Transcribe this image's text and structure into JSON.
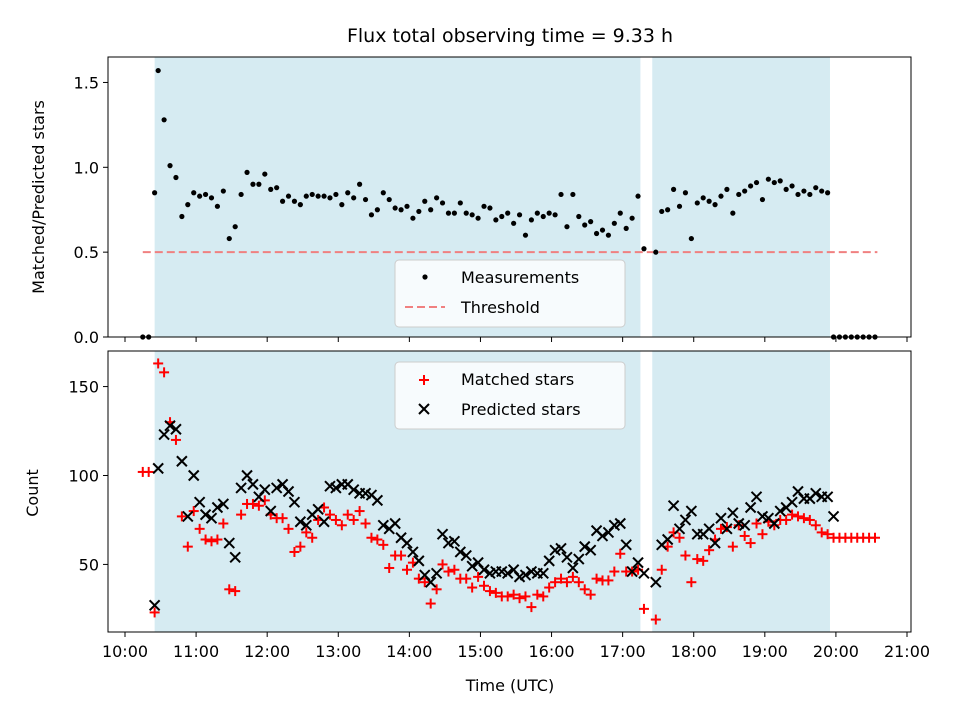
{
  "chart_data": [
    {
      "type": "scatter",
      "title": "Flux total observing time = 9.33 h",
      "xlabel": "",
      "ylabel": "Matched/Predicted stars",
      "xlim": [
        "10:00",
        "21:00"
      ],
      "ylim": [
        0,
        1.65
      ],
      "yticks": [
        "0.0",
        "0.5",
        "1.0",
        "1.5"
      ],
      "grid": false,
      "legend": "lower-center",
      "shaded_intervals": [
        [
          "10:25",
          "17:15"
        ],
        [
          "17:25",
          "19:55"
        ]
      ],
      "threshold": {
        "name": "Threshold",
        "y": 0.5,
        "x": [
          "10:15",
          "20:35"
        ],
        "color": "#f08080"
      },
      "series": [
        {
          "name": "Measurements",
          "color": "#000000",
          "marker": "dot",
          "x": [
            "10:15",
            "10:20",
            "10:25",
            "10:28",
            "10:33",
            "10:38",
            "10:43",
            "10:48",
            "10:53",
            "10:58",
            "11:03",
            "11:08",
            "11:13",
            "11:18",
            "11:23",
            "11:28",
            "11:33",
            "11:38",
            "11:43",
            "11:48",
            "11:53",
            "11:58",
            "12:03",
            "12:08",
            "12:13",
            "12:18",
            "12:23",
            "12:28",
            "12:33",
            "12:38",
            "12:43",
            "12:48",
            "12:53",
            "12:58",
            "13:03",
            "13:08",
            "13:13",
            "13:18",
            "13:23",
            "13:28",
            "13:33",
            "13:38",
            "13:43",
            "13:48",
            "13:53",
            "13:58",
            "14:03",
            "14:08",
            "14:13",
            "14:18",
            "14:23",
            "14:28",
            "14:33",
            "14:38",
            "14:43",
            "14:48",
            "14:53",
            "14:58",
            "15:03",
            "15:08",
            "15:13",
            "15:18",
            "15:23",
            "15:28",
            "15:33",
            "15:38",
            "15:43",
            "15:48",
            "15:53",
            "15:58",
            "16:03",
            "16:08",
            "16:13",
            "16:18",
            "16:23",
            "16:28",
            "16:33",
            "16:38",
            "16:43",
            "16:48",
            "16:53",
            "16:58",
            "17:03",
            "17:08",
            "17:13",
            "17:18",
            "17:28",
            "17:33",
            "17:38",
            "17:43",
            "17:48",
            "17:53",
            "17:58",
            "18:03",
            "18:08",
            "18:13",
            "18:18",
            "18:23",
            "18:28",
            "18:33",
            "18:38",
            "18:43",
            "18:48",
            "18:53",
            "18:58",
            "19:03",
            "19:08",
            "19:13",
            "19:18",
            "19:23",
            "19:28",
            "19:33",
            "19:38",
            "19:43",
            "19:48",
            "19:53",
            "19:58",
            "20:03",
            "20:08",
            "20:13",
            "20:18",
            "20:23",
            "20:28",
            "20:33"
          ],
          "values": [
            0,
            0,
            0.85,
            1.57,
            1.28,
            1.01,
            0.94,
            0.71,
            0.78,
            0.85,
            0.83,
            0.84,
            0.82,
            0.77,
            0.86,
            0.58,
            0.65,
            0.84,
            0.97,
            0.9,
            0.9,
            0.96,
            0.87,
            0.88,
            0.8,
            0.83,
            0.8,
            0.78,
            0.83,
            0.84,
            0.83,
            0.83,
            0.82,
            0.84,
            0.78,
            0.85,
            0.82,
            0.9,
            0.81,
            0.72,
            0.75,
            0.85,
            0.81,
            0.76,
            0.75,
            0.77,
            0.7,
            0.74,
            0.8,
            0.75,
            0.82,
            0.79,
            0.73,
            0.73,
            0.79,
            0.73,
            0.72,
            0.7,
            0.77,
            0.76,
            0.69,
            0.71,
            0.73,
            0.67,
            0.72,
            0.6,
            0.69,
            0.73,
            0.71,
            0.73,
            0.72,
            0.84,
            0.65,
            0.84,
            0.71,
            0.66,
            0.68,
            0.61,
            0.63,
            0.6,
            0.67,
            0.73,
            0.64,
            0.7,
            0.83,
            0.52,
            0.5,
            0.74,
            0.75,
            0.87,
            0.77,
            0.85,
            0.58,
            0.79,
            0.82,
            0.8,
            0.78,
            0.83,
            0.87,
            0.73,
            0.84,
            0.86,
            0.89,
            0.91,
            0.81,
            0.93,
            0.91,
            0.92,
            0.87,
            0.89,
            0.84,
            0.86,
            0.84,
            0.88,
            0.86,
            0.85,
            0,
            0,
            0,
            0,
            0,
            0,
            0,
            0
          ]
        }
      ]
    },
    {
      "type": "scatter",
      "title": "",
      "xlabel": "Time (UTC)",
      "ylabel": "Count",
      "xlim": [
        "10:00",
        "21:00"
      ],
      "ylim": [
        12,
        170
      ],
      "xticks": [
        "10:00",
        "11:00",
        "12:00",
        "13:00",
        "14:00",
        "15:00",
        "16:00",
        "17:00",
        "18:00",
        "19:00",
        "20:00",
        "21:00"
      ],
      "yticks": [
        "50",
        "100",
        "150"
      ],
      "grid": false,
      "legend": "upper-center",
      "shaded_intervals": [
        [
          "10:25",
          "17:15"
        ],
        [
          "17:25",
          "19:55"
        ]
      ],
      "series": [
        {
          "name": "Matched stars",
          "color": "#ff0000",
          "marker": "plus",
          "x": [
            "10:15",
            "10:20",
            "10:25",
            "10:28",
            "10:33",
            "10:38",
            "10:43",
            "10:48",
            "10:53",
            "10:58",
            "11:03",
            "11:08",
            "11:13",
            "11:18",
            "11:23",
            "11:28",
            "11:33",
            "11:38",
            "11:43",
            "11:48",
            "11:53",
            "11:58",
            "12:03",
            "12:08",
            "12:13",
            "12:18",
            "12:23",
            "12:28",
            "12:33",
            "12:38",
            "12:43",
            "12:48",
            "12:53",
            "12:58",
            "13:03",
            "13:08",
            "13:13",
            "13:18",
            "13:23",
            "13:28",
            "13:33",
            "13:38",
            "13:43",
            "13:48",
            "13:53",
            "13:58",
            "14:03",
            "14:08",
            "14:13",
            "14:18",
            "14:23",
            "14:28",
            "14:33",
            "14:38",
            "14:43",
            "14:48",
            "14:53",
            "14:58",
            "15:03",
            "15:08",
            "15:13",
            "15:18",
            "15:23",
            "15:28",
            "15:33",
            "15:38",
            "15:43",
            "15:48",
            "15:53",
            "15:58",
            "16:03",
            "16:08",
            "16:13",
            "16:18",
            "16:23",
            "16:28",
            "16:33",
            "16:38",
            "16:43",
            "16:48",
            "16:53",
            "16:58",
            "17:03",
            "17:08",
            "17:13",
            "17:18",
            "17:28",
            "17:33",
            "17:38",
            "17:43",
            "17:48",
            "17:53",
            "17:58",
            "18:03",
            "18:08",
            "18:13",
            "18:18",
            "18:23",
            "18:28",
            "18:33",
            "18:38",
            "18:43",
            "18:48",
            "18:53",
            "18:58",
            "19:03",
            "19:08",
            "19:13",
            "19:18",
            "19:23",
            "19:28",
            "19:33",
            "19:38",
            "19:43",
            "19:48",
            "19:53",
            "19:58",
            "20:03",
            "20:08",
            "20:13",
            "20:18",
            "20:23",
            "20:28",
            "20:33"
          ],
          "values": [
            102,
            102,
            23,
            163,
            158,
            130,
            120,
            77,
            60,
            80,
            70,
            64,
            63,
            64,
            73,
            36,
            35,
            78,
            84,
            84,
            83,
            86,
            78,
            76,
            76,
            70,
            57,
            60,
            68,
            65,
            75,
            82,
            78,
            75,
            72,
            78,
            75,
            80,
            73,
            65,
            64,
            61,
            48,
            55,
            55,
            47,
            51,
            42,
            40,
            28,
            36,
            50,
            46,
            47,
            42,
            42,
            37,
            43,
            38,
            35,
            34,
            32,
            32,
            33,
            31,
            32,
            26,
            33,
            32,
            37,
            40,
            42,
            40,
            43,
            40,
            36,
            33,
            42,
            41,
            41,
            46,
            56,
            46,
            46,
            47,
            25,
            19,
            47,
            60,
            68,
            65,
            55,
            40,
            53,
            52,
            58,
            64,
            70,
            71,
            60,
            72,
            66,
            62,
            73,
            67,
            74,
            72,
            75,
            75,
            78,
            77,
            76,
            75,
            72,
            68,
            67,
            65,
            65,
            65,
            65,
            65,
            65,
            65,
            65
          ]
        },
        {
          "name": "Predicted stars",
          "color": "#000000",
          "marker": "x",
          "x": [
            "10:25",
            "10:28",
            "10:33",
            "10:38",
            "10:43",
            "10:48",
            "10:53",
            "10:58",
            "11:03",
            "11:08",
            "11:13",
            "11:18",
            "11:23",
            "11:28",
            "11:33",
            "11:38",
            "11:43",
            "11:48",
            "11:53",
            "11:58",
            "12:03",
            "12:08",
            "12:13",
            "12:18",
            "12:23",
            "12:28",
            "12:33",
            "12:38",
            "12:43",
            "12:48",
            "12:53",
            "12:58",
            "13:03",
            "13:08",
            "13:13",
            "13:18",
            "13:23",
            "13:28",
            "13:33",
            "13:38",
            "13:43",
            "13:48",
            "13:53",
            "13:58",
            "14:03",
            "14:08",
            "14:13",
            "14:18",
            "14:23",
            "14:28",
            "14:33",
            "14:38",
            "14:43",
            "14:48",
            "14:53",
            "14:58",
            "15:03",
            "15:08",
            "15:13",
            "15:18",
            "15:23",
            "15:28",
            "15:33",
            "15:38",
            "15:43",
            "15:48",
            "15:53",
            "15:58",
            "16:03",
            "16:08",
            "16:13",
            "16:18",
            "16:23",
            "16:28",
            "16:33",
            "16:38",
            "16:43",
            "16:48",
            "16:53",
            "16:58",
            "17:03",
            "17:08",
            "17:13",
            "17:18",
            "17:28",
            "17:33",
            "17:38",
            "17:43",
            "17:48",
            "17:53",
            "17:58",
            "18:03",
            "18:08",
            "18:13",
            "18:18",
            "18:23",
            "18:28",
            "18:33",
            "18:38",
            "18:43",
            "18:48",
            "18:53",
            "18:58",
            "19:03",
            "19:08",
            "19:13",
            "19:18",
            "19:23",
            "19:28",
            "19:33",
            "19:38",
            "19:43",
            "19:48",
            "19:53",
            "19:58"
          ],
          "values": [
            27,
            104,
            123,
            128,
            126,
            108,
            77,
            100,
            85,
            78,
            76,
            82,
            84,
            62,
            54,
            93,
            100,
            95,
            88,
            92,
            80,
            93,
            95,
            91,
            85,
            74,
            72,
            78,
            81,
            74,
            94,
            93,
            95,
            95,
            92,
            90,
            90,
            89,
            86,
            72,
            70,
            73,
            65,
            62,
            57,
            52,
            44,
            40,
            45,
            67,
            62,
            63,
            57,
            55,
            49,
            51,
            47,
            45,
            46,
            46,
            45,
            47,
            43,
            44,
            46,
            45,
            45,
            52,
            58,
            59,
            54,
            48,
            53,
            60,
            58,
            69,
            66,
            68,
            72,
            73,
            61,
            46,
            51,
            45,
            40,
            61,
            64,
            83,
            70,
            75,
            80,
            67,
            67,
            70,
            62,
            76,
            70,
            79,
            73,
            72,
            82,
            88,
            77,
            76,
            73,
            80,
            82,
            85,
            91,
            87,
            87,
            90,
            88,
            88,
            77
          ]
        }
      ]
    }
  ]
}
